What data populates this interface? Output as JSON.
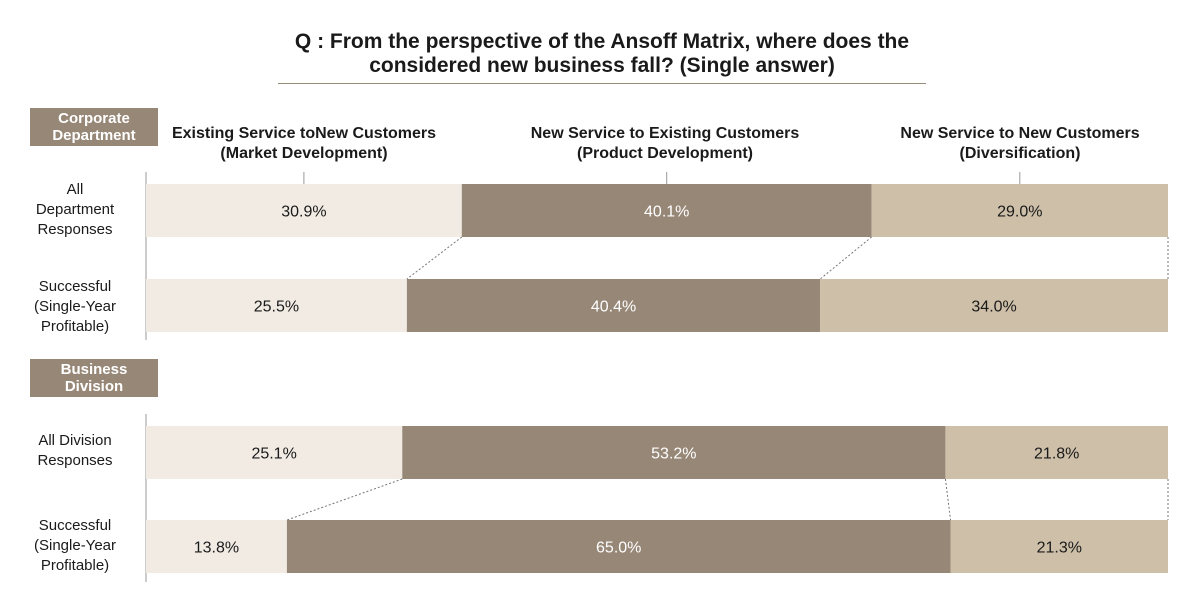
{
  "title": {
    "line1": "Q : From the perspective of the Ansoff Matrix, where does the",
    "line2": "considered new business fall? (Single answer)"
  },
  "sections": [
    {
      "line1": "Corporate",
      "line2": "Department"
    },
    {
      "line1": "Business",
      "line2": "Division"
    }
  ],
  "headers": [
    {
      "line1": "Existing Service toNew Customers",
      "line2": "(Market Development)"
    },
    {
      "line1": "New Service to Existing Customers",
      "line2": "(Product Development)"
    },
    {
      "line1": "New Service to New Customers",
      "line2": "(Diversification)"
    }
  ],
  "row_labels": [
    {
      "lines": [
        "All",
        "Department",
        "Responses"
      ]
    },
    {
      "lines": [
        "Successful",
        "(Single-Year",
        "Profitable)"
      ]
    },
    {
      "lines": [
        "All Division",
        "Responses"
      ]
    },
    {
      "lines": [
        "Successful",
        "(Single-Year",
        "Profitable)"
      ]
    }
  ],
  "colors": {
    "market": "#f1ebe4",
    "product": "#978777",
    "diversification": "#cdbfa8",
    "label_dark": "#1a1a1a",
    "label_light": "#ffffff",
    "axis": "#999999",
    "connector": "#777777"
  },
  "chart_data": {
    "type": "bar",
    "orientation": "horizontal",
    "stacked": true,
    "percent": true,
    "categories": [
      "All Department Responses",
      "Successful (Single-Year Profitable)",
      "All Division Responses",
      "Successful (Single-Year Profitable)"
    ],
    "groups": [
      "Corporate Department",
      "Corporate Department",
      "Business Division",
      "Business Division"
    ],
    "series": [
      {
        "name": "Existing Service toNew Customers (Market Development)",
        "values": [
          30.9,
          25.5,
          25.1,
          13.8
        ],
        "labels": [
          "30.9%",
          "25.5%",
          "25.1%",
          "13.8%"
        ]
      },
      {
        "name": "New Service to Existing Customers (Product Development)",
        "values": [
          40.1,
          40.4,
          53.2,
          65.0
        ],
        "labels": [
          "40.1%",
          "40.4%",
          "53.2%",
          "65.0%"
        ]
      },
      {
        "name": "New Service to New Customers (Diversification)",
        "values": [
          29.0,
          34.0,
          21.8,
          21.3
        ],
        "labels": [
          "29.0%",
          "34.0%",
          "21.8%",
          "21.3%"
        ]
      }
    ],
    "xlim": [
      0,
      100
    ],
    "connectors": true,
    "grid": false
  }
}
